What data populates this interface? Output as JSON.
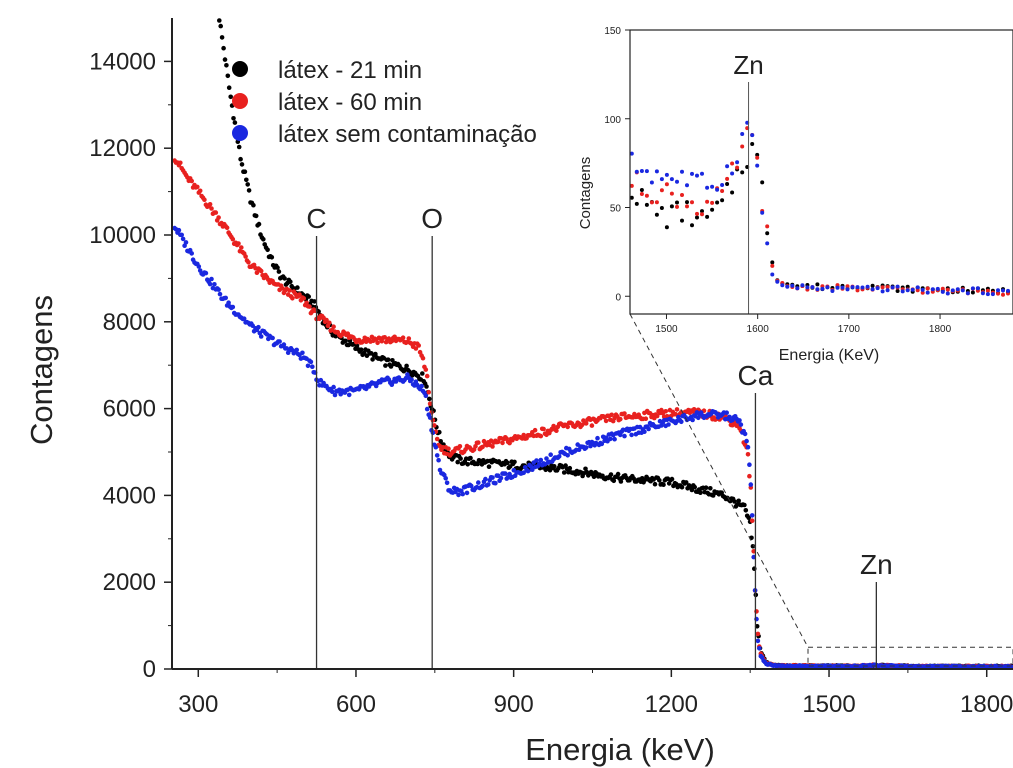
{
  "chart_data": [
    {
      "type": "scatter",
      "xlabel": "Energia (keV)",
      "ylabel": "Contagens",
      "xlim": [
        250,
        1850
      ],
      "ylim": [
        0,
        15000
      ],
      "xticks": [
        300,
        600,
        900,
        1200,
        1500,
        1800
      ],
      "xtick_labels": [
        "300",
        "600",
        "900",
        "1200",
        "1500",
        "1800"
      ],
      "yticks": [
        0,
        2000,
        4000,
        6000,
        8000,
        10000,
        12000,
        14000
      ],
      "ytick_labels": [
        "0",
        "2000",
        "4000",
        "6000",
        "8000",
        "10000",
        "12000",
        "14000"
      ],
      "grid": false,
      "legend_position": "top-left",
      "series": [
        {
          "name": "látex - 21 min",
          "color": "#000000",
          "x": [
            340,
            360,
            380,
            400,
            420,
            440,
            460,
            480,
            500,
            520,
            540,
            560,
            600,
            650,
            700,
            730,
            745,
            760,
            780,
            800,
            900,
            1000,
            1100,
            1200,
            1250,
            1300,
            1340,
            1350,
            1356,
            1360,
            1364,
            1370,
            1380,
            1400,
            1450,
            1500,
            1550,
            1575,
            1585,
            1600,
            1625,
            1650,
            1700,
            1800,
            1850
          ],
          "y": [
            15000,
            13300,
            11800,
            10800,
            10000,
            9400,
            9000,
            8800,
            8600,
            8400,
            8000,
            7700,
            7400,
            7100,
            6900,
            6700,
            6000,
            5300,
            4900,
            4800,
            4700,
            4600,
            4400,
            4300,
            4150,
            4000,
            3700,
            3300,
            2700,
            1800,
            900,
            400,
            150,
            80,
            70,
            70,
            65,
            80,
            90,
            80,
            70,
            65,
            60,
            60,
            60
          ]
        },
        {
          "name": "látex - 60 min",
          "color": "#e8211f",
          "x": [
            255,
            280,
            300,
            350,
            400,
            450,
            500,
            520,
            540,
            560,
            600,
            650,
            700,
            720,
            735,
            745,
            760,
            780,
            800,
            900,
            1000,
            1100,
            1200,
            1250,
            1300,
            1330,
            1345,
            1352,
            1356,
            1360,
            1364,
            1370,
            1380,
            1400,
            1450,
            1500,
            1550,
            1575,
            1585,
            1600,
            1625,
            1650,
            1700,
            1800,
            1850
          ],
          "y": [
            11800,
            11300,
            11000,
            10200,
            9300,
            8800,
            8500,
            8200,
            8000,
            7800,
            7600,
            7600,
            7550,
            7400,
            6800,
            5700,
            5100,
            5000,
            5050,
            5300,
            5600,
            5800,
            5900,
            5900,
            5800,
            5600,
            5000,
            4000,
            2800,
            1700,
            800,
            350,
            140,
            75,
            70,
            65,
            65,
            80,
            90,
            80,
            70,
            60,
            60,
            60,
            55
          ]
        },
        {
          "name": "látex sem contaminação",
          "color": "#1a28e0",
          "x": [
            255,
            280,
            300,
            350,
            400,
            450,
            500,
            520,
            530,
            560,
            600,
            650,
            700,
            730,
            745,
            760,
            780,
            800,
            900,
            1000,
            1100,
            1200,
            1250,
            1300,
            1330,
            1345,
            1352,
            1356,
            1360,
            1364,
            1370,
            1380,
            1400,
            1450,
            1500,
            1550,
            1575,
            1585,
            1600,
            1625,
            1650,
            1700,
            1800,
            1850
          ],
          "y": [
            10200,
            9700,
            9300,
            8500,
            7900,
            7500,
            7200,
            6900,
            6600,
            6400,
            6400,
            6600,
            6700,
            6400,
            5500,
            4600,
            4100,
            4100,
            4500,
            5000,
            5400,
            5700,
            5850,
            5850,
            5700,
            5200,
            4100,
            2800,
            1600,
            700,
            300,
            120,
            70,
            65,
            65,
            65,
            80,
            95,
            80,
            70,
            60,
            60,
            55,
            55
          ]
        }
      ],
      "annotations": [
        {
          "label": "C",
          "x": 525
        },
        {
          "label": "O",
          "x": 745
        },
        {
          "label": "Ca",
          "x": 1360
        },
        {
          "label": "Zn",
          "x": 1590
        }
      ]
    },
    {
      "type": "scatter",
      "xlabel": "Energia (KeV)",
      "ylabel": "Contagens",
      "xlim": [
        1460,
        1880
      ],
      "ylim": [
        -10,
        150
      ],
      "xticks": [
        1500,
        1600,
        1700,
        1800
      ],
      "xtick_labels": [
        "1500",
        "1600",
        "1700",
        "1800"
      ],
      "yticks": [
        0,
        50,
        100,
        150
      ],
      "ytick_labels": [
        "0",
        "50",
        "100",
        "150"
      ],
      "grid": false,
      "series": [
        {
          "name": "látex - 21 min",
          "color": "#000000",
          "x": [
            1460,
            1480,
            1500,
            1520,
            1540,
            1560,
            1570,
            1580,
            1590,
            1595,
            1600,
            1605,
            1610,
            1615,
            1620,
            1640,
            1680,
            1720,
            1760,
            1800,
            1840,
            1880
          ],
          "y": [
            62,
            50,
            45,
            48,
            42,
            50,
            60,
            72,
            80,
            85,
            75,
            60,
            42,
            22,
            10,
            6,
            5,
            6,
            4,
            4,
            3,
            3
          ]
        },
        {
          "name": "látex - 60 min",
          "color": "#e8211f",
          "x": [
            1460,
            1480,
            1500,
            1520,
            1540,
            1560,
            1570,
            1580,
            1590,
            1595,
            1600,
            1605,
            1610,
            1615,
            1620,
            1640,
            1680,
            1720,
            1760,
            1800,
            1840,
            1880
          ],
          "y": [
            65,
            60,
            58,
            55,
            50,
            55,
            65,
            80,
            90,
            88,
            72,
            55,
            35,
            18,
            8,
            5,
            5,
            4,
            4,
            3,
            3,
            2
          ]
        },
        {
          "name": "látex sem contaminação",
          "color": "#1a28e0",
          "x": [
            1460,
            1480,
            1500,
            1520,
            1540,
            1560,
            1570,
            1580,
            1590,
            1595,
            1600,
            1605,
            1610,
            1615,
            1620,
            1640,
            1680,
            1720,
            1760,
            1800,
            1840,
            1880
          ],
          "y": [
            75,
            70,
            68,
            66,
            62,
            66,
            72,
            86,
            96,
            90,
            70,
            48,
            30,
            15,
            7,
            5,
            4,
            4,
            4,
            3,
            3,
            2
          ]
        }
      ],
      "annotations": [
        {
          "label": "Zn",
          "x": 1590
        }
      ]
    }
  ]
}
